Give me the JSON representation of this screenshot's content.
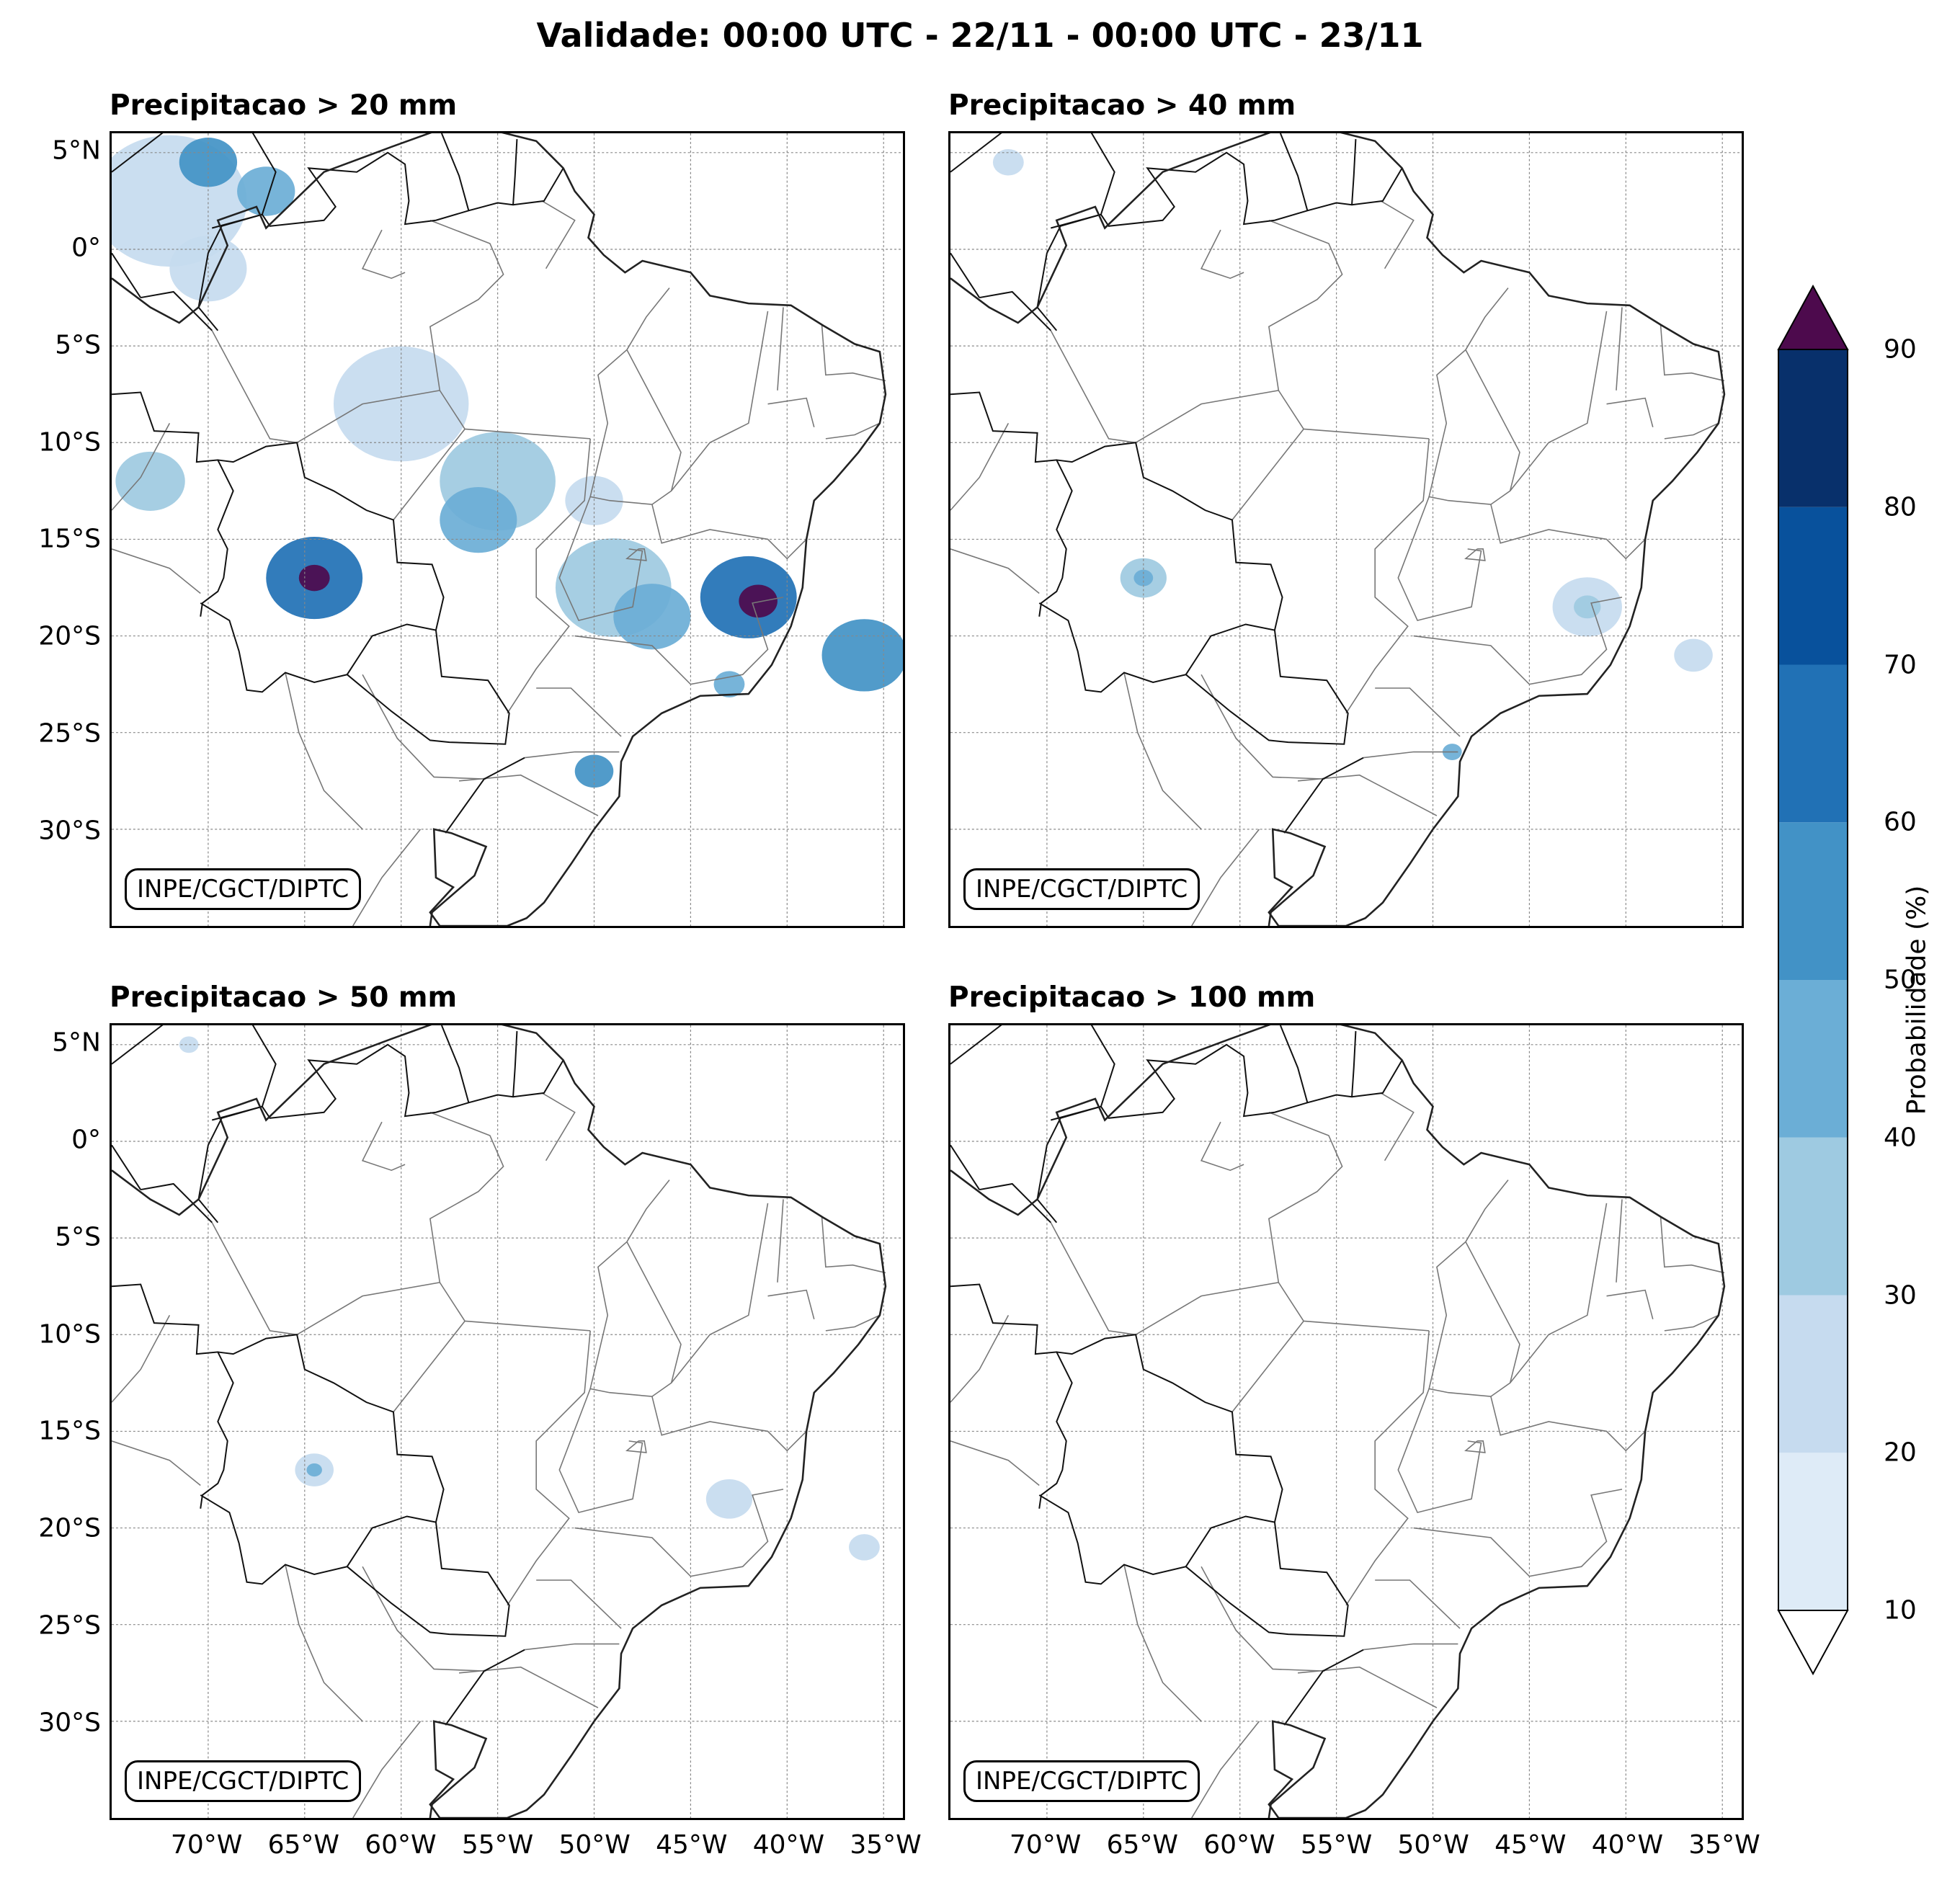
{
  "title": "Validade: 00:00 UTC - 22/11 - 00:00 UTC - 23/11",
  "panels": [
    {
      "title": "Precipitacao > 20 mm",
      "credit": "INPE/CGCT/DIPTC",
      "blobs": [
        {
          "lon": -72,
          "lat": 2.5,
          "r": 4,
          "p": 20
        },
        {
          "lon": -70,
          "lat": 4.5,
          "r": 1.5,
          "p": 50
        },
        {
          "lon": -67,
          "lat": 3,
          "r": 1.5,
          "p": 40
        },
        {
          "lon": -70,
          "lat": -1,
          "r": 2,
          "p": 20
        },
        {
          "lon": -73,
          "lat": -12,
          "r": 1.8,
          "p": 30
        },
        {
          "lon": -60,
          "lat": -8,
          "r": 3.5,
          "p": 20
        },
        {
          "lon": -55,
          "lat": -12,
          "r": 3,
          "p": 30
        },
        {
          "lon": -56,
          "lat": -14,
          "r": 2,
          "p": 40
        },
        {
          "lon": -64.5,
          "lat": -17,
          "r": 2.5,
          "p": 60
        },
        {
          "lon": -64.5,
          "lat": -17,
          "r": 0.8,
          "p": 90
        },
        {
          "lon": -49,
          "lat": -17.5,
          "r": 3,
          "p": 30
        },
        {
          "lon": -47,
          "lat": -19,
          "r": 2,
          "p": 40
        },
        {
          "lon": -42,
          "lat": -18,
          "r": 2.5,
          "p": 60
        },
        {
          "lon": -41.5,
          "lat": -18.2,
          "r": 1,
          "p": 90
        },
        {
          "lon": -36,
          "lat": -21,
          "r": 2.2,
          "p": 50
        },
        {
          "lon": -50,
          "lat": -27,
          "r": 1,
          "p": 50
        },
        {
          "lon": -50,
          "lat": -13,
          "r": 1.5,
          "p": 20
        },
        {
          "lon": -43,
          "lat": -22.5,
          "r": 0.8,
          "p": 40
        }
      ]
    },
    {
      "title": "Precipitacao > 40 mm",
      "credit": "INPE/CGCT/DIPTC",
      "blobs": [
        {
          "lon": -65,
          "lat": -17,
          "r": 1.2,
          "p": 30
        },
        {
          "lon": -65,
          "lat": -17,
          "r": 0.5,
          "p": 40
        },
        {
          "lon": -42,
          "lat": -18.5,
          "r": 1.8,
          "p": 20
        },
        {
          "lon": -42,
          "lat": -18.5,
          "r": 0.7,
          "p": 30
        },
        {
          "lon": -36.5,
          "lat": -21,
          "r": 1,
          "p": 20
        },
        {
          "lon": -72,
          "lat": 4.5,
          "r": 0.8,
          "p": 20
        },
        {
          "lon": -49,
          "lat": -26,
          "r": 0.5,
          "p": 40
        }
      ]
    },
    {
      "title": "Precipitacao > 50 mm",
      "credit": "INPE/CGCT/DIPTC",
      "blobs": [
        {
          "lon": -64.5,
          "lat": -17,
          "r": 1,
          "p": 20
        },
        {
          "lon": -64.5,
          "lat": -17,
          "r": 0.4,
          "p": 40
        },
        {
          "lon": -43,
          "lat": -18.5,
          "r": 1.2,
          "p": 20
        },
        {
          "lon": -36,
          "lat": -21,
          "r": 0.8,
          "p": 20
        },
        {
          "lon": -71,
          "lat": 5,
          "r": 0.5,
          "p": 20
        }
      ]
    },
    {
      "title": "Precipitacao > 100 mm",
      "credit": "INPE/CGCT/DIPTC",
      "blobs": []
    }
  ],
  "lat_labels": [
    {
      "lat": 5,
      "label": "5°N"
    },
    {
      "lat": 0,
      "label": "0°"
    },
    {
      "lat": -5,
      "label": "5°S"
    },
    {
      "lat": -10,
      "label": "10°S"
    },
    {
      "lat": -15,
      "label": "15°S"
    },
    {
      "lat": -20,
      "label": "20°S"
    },
    {
      "lat": -25,
      "label": "25°S"
    },
    {
      "lat": -30,
      "label": "30°S"
    }
  ],
  "lon_labels": [
    {
      "lon": -70,
      "label": "70°W"
    },
    {
      "lon": -65,
      "label": "65°W"
    },
    {
      "lon": -60,
      "label": "60°W"
    },
    {
      "lon": -55,
      "label": "55°W"
    },
    {
      "lon": -50,
      "label": "50°W"
    },
    {
      "lon": -45,
      "label": "45°W"
    },
    {
      "lon": -40,
      "label": "40°W"
    },
    {
      "lon": -35,
      "label": "35°W"
    }
  ],
  "extent": {
    "lon_min": -75,
    "lon_max": -34,
    "lat_min": -35,
    "lat_max": 6
  },
  "colorbar": {
    "label": "Probabilidade (%)",
    "ticks": [
      "10",
      "20",
      "30",
      "40",
      "50",
      "60",
      "70",
      "80",
      "90"
    ],
    "colors": [
      "#deebf7",
      "#c6dbef",
      "#9ecae1",
      "#6baed6",
      "#4292c6",
      "#2171b5",
      "#08519c",
      "#08306b"
    ],
    "over_color": "#4d0a4d",
    "under_color": "#ffffff"
  }
}
